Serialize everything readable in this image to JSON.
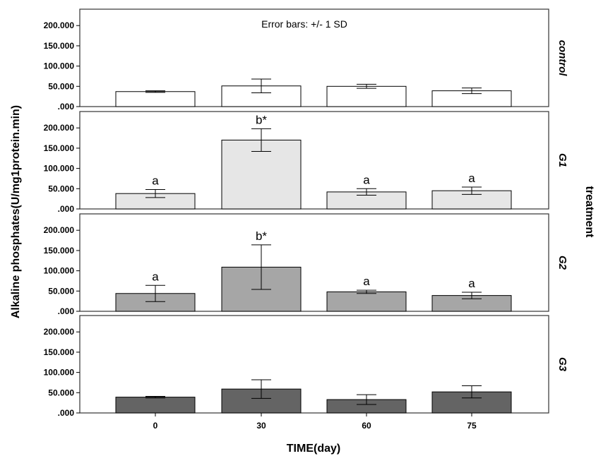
{
  "chart_data": {
    "type": "bar",
    "note": "Error bars: +/- 1 SD",
    "xlabel": "TIME(day)",
    "ylabel": "Alkaline phosphates(U/mg1protein.min)",
    "facet_label": "treatment",
    "categories": [
      "0",
      "30",
      "60",
      "75"
    ],
    "ylim": [
      0,
      230
    ],
    "yticks": [
      ".000",
      "50.000",
      "100.000",
      "150.000",
      "200.000"
    ],
    "ytick_values": [
      0,
      50,
      100,
      150,
      200
    ],
    "panels": [
      {
        "name": "control",
        "color": "#ffffff",
        "values": [
          37,
          51,
          50,
          39
        ],
        "sd": [
          2,
          17,
          5,
          7
        ],
        "annotations": [
          "",
          "",
          "",
          ""
        ]
      },
      {
        "name": "G1",
        "color": "#e6e6e6",
        "values": [
          38,
          170,
          42,
          45
        ],
        "sd": [
          10,
          28,
          8,
          9
        ],
        "annotations": [
          "a",
          "b*",
          "a",
          "a"
        ]
      },
      {
        "name": "G2",
        "color": "#a6a6a6",
        "values": [
          44,
          109,
          48,
          39
        ],
        "sd": [
          20,
          55,
          4,
          8
        ],
        "annotations": [
          "a",
          "b*",
          "a",
          "a"
        ]
      },
      {
        "name": "G3",
        "color": "#646464",
        "values": [
          39,
          59,
          33,
          52
        ],
        "sd": [
          2,
          23,
          12,
          15
        ],
        "annotations": [
          "",
          "",
          "",
          ""
        ]
      }
    ]
  }
}
